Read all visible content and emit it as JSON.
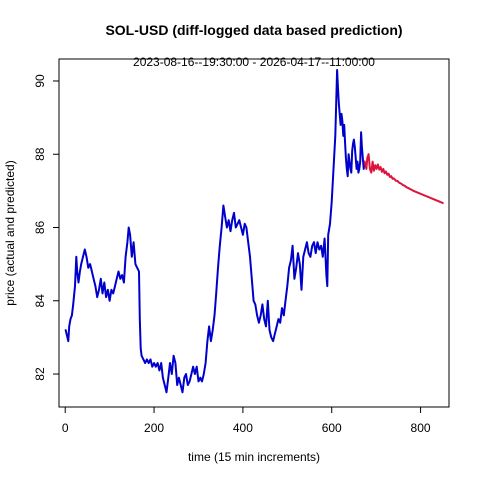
{
  "chart_data": {
    "type": "line",
    "title": "SOL-USD (diff-logged data based prediction)",
    "subtitle": "2023-08-16--19:30:00  -  2026-04-17--11:00:00",
    "xlabel": "time (15 min increments)",
    "ylabel": "price (actual and predicted)",
    "xlim": [
      -14,
      864
    ],
    "ylim": [
      81.1,
      90.6
    ],
    "xticks": [
      0,
      200,
      400,
      600,
      800
    ],
    "yticks": [
      82,
      84,
      86,
      88,
      90
    ],
    "grid": false,
    "series": [
      {
        "color": "#0000CD",
        "points": [
          [
            1,
            83.2
          ],
          [
            5,
            83.0
          ],
          [
            7,
            82.9
          ],
          [
            9,
            83.3
          ],
          [
            12,
            83.5
          ],
          [
            15,
            83.6
          ],
          [
            18,
            83.9
          ],
          [
            22,
            84.4
          ],
          [
            25,
            85.2
          ],
          [
            27,
            84.8
          ],
          [
            30,
            84.5
          ],
          [
            33,
            84.8
          ],
          [
            36,
            85.0
          ],
          [
            40,
            85.2
          ],
          [
            44,
            85.4
          ],
          [
            48,
            85.2
          ],
          [
            52,
            84.9
          ],
          [
            56,
            85.0
          ],
          [
            60,
            84.8
          ],
          [
            64,
            84.6
          ],
          [
            68,
            84.4
          ],
          [
            72,
            84.1
          ],
          [
            76,
            84.3
          ],
          [
            80,
            84.6
          ],
          [
            84,
            84.2
          ],
          [
            88,
            84.5
          ],
          [
            92,
            84.1
          ],
          [
            96,
            84.3
          ],
          [
            100,
            84.0
          ],
          [
            104,
            84.3
          ],
          [
            108,
            84.2
          ],
          [
            112,
            84.4
          ],
          [
            116,
            84.6
          ],
          [
            120,
            84.8
          ],
          [
            124,
            84.6
          ],
          [
            128,
            84.7
          ],
          [
            132,
            84.5
          ],
          [
            136,
            85.2
          ],
          [
            140,
            85.6
          ],
          [
            143,
            86.0
          ],
          [
            146,
            85.8
          ],
          [
            150,
            85.2
          ],
          [
            154,
            85.6
          ],
          [
            158,
            85.0
          ],
          [
            162,
            84.9
          ],
          [
            166,
            84.8
          ],
          [
            168,
            83.5
          ],
          [
            170,
            82.7
          ],
          [
            172,
            82.5
          ],
          [
            176,
            82.4
          ],
          [
            180,
            82.3
          ],
          [
            184,
            82.4
          ],
          [
            188,
            82.3
          ],
          [
            192,
            82.4
          ],
          [
            196,
            82.2
          ],
          [
            200,
            82.3
          ],
          [
            204,
            82.2
          ],
          [
            208,
            82.3
          ],
          [
            212,
            82.1
          ],
          [
            216,
            82.3
          ],
          [
            220,
            81.9
          ],
          [
            224,
            81.7
          ],
          [
            228,
            81.5
          ],
          [
            232,
            81.9
          ],
          [
            236,
            82.3
          ],
          [
            240,
            82.0
          ],
          [
            244,
            82.5
          ],
          [
            248,
            82.3
          ],
          [
            252,
            81.7
          ],
          [
            256,
            81.9
          ],
          [
            260,
            81.7
          ],
          [
            264,
            81.5
          ],
          [
            268,
            81.9
          ],
          [
            272,
            82.0
          ],
          [
            276,
            81.7
          ],
          [
            280,
            81.8
          ],
          [
            284,
            82.0
          ],
          [
            288,
            82.2
          ],
          [
            292,
            82.0
          ],
          [
            296,
            82.2
          ],
          [
            300,
            81.8
          ],
          [
            304,
            81.9
          ],
          [
            308,
            81.8
          ],
          [
            312,
            82.0
          ],
          [
            316,
            82.3
          ],
          [
            320,
            82.9
          ],
          [
            324,
            83.3
          ],
          [
            328,
            82.9
          ],
          [
            332,
            83.2
          ],
          [
            336,
            83.6
          ],
          [
            340,
            84.2
          ],
          [
            344,
            84.9
          ],
          [
            348,
            85.5
          ],
          [
            352,
            86.0
          ],
          [
            356,
            86.6
          ],
          [
            360,
            86.3
          ],
          [
            364,
            86.0
          ],
          [
            368,
            86.2
          ],
          [
            372,
            85.9
          ],
          [
            376,
            86.2
          ],
          [
            380,
            86.4
          ],
          [
            384,
            86.0
          ],
          [
            388,
            86.1
          ],
          [
            392,
            86.2
          ],
          [
            396,
            86.0
          ],
          [
            400,
            85.8
          ],
          [
            404,
            86.1
          ],
          [
            408,
            86.0
          ],
          [
            412,
            85.6
          ],
          [
            416,
            85.2
          ],
          [
            420,
            84.6
          ],
          [
            424,
            84.0
          ],
          [
            428,
            83.9
          ],
          [
            432,
            83.6
          ],
          [
            436,
            83.4
          ],
          [
            440,
            83.6
          ],
          [
            444,
            83.9
          ],
          [
            448,
            83.5
          ],
          [
            452,
            83.3
          ],
          [
            456,
            84.0
          ],
          [
            460,
            83.2
          ],
          [
            464,
            83.0
          ],
          [
            468,
            82.9
          ],
          [
            472,
            83.1
          ],
          [
            476,
            83.3
          ],
          [
            480,
            83.5
          ],
          [
            484,
            83.4
          ],
          [
            488,
            83.8
          ],
          [
            492,
            83.6
          ],
          [
            496,
            84.0
          ],
          [
            500,
            84.4
          ],
          [
            504,
            84.9
          ],
          [
            508,
            85.1
          ],
          [
            512,
            85.5
          ],
          [
            516,
            84.6
          ],
          [
            520,
            84.9
          ],
          [
            524,
            85.3
          ],
          [
            528,
            85.0
          ],
          [
            532,
            84.3
          ],
          [
            536,
            85.2
          ],
          [
            540,
            85.4
          ],
          [
            544,
            85.6
          ],
          [
            548,
            85.3
          ],
          [
            552,
            85.2
          ],
          [
            556,
            85.5
          ],
          [
            560,
            85.6
          ],
          [
            564,
            85.3
          ],
          [
            568,
            85.6
          ],
          [
            572,
            85.4
          ],
          [
            576,
            85.5
          ],
          [
            580,
            85.2
          ],
          [
            584,
            85.7
          ],
          [
            588,
            84.7
          ],
          [
            590,
            84.4
          ],
          [
            592,
            85.8
          ],
          [
            596,
            86.1
          ],
          [
            600,
            86.7
          ],
          [
            604,
            87.6
          ],
          [
            608,
            88.5
          ],
          [
            612,
            90.3
          ],
          [
            614,
            89.8
          ],
          [
            616,
            89.4
          ],
          [
            618,
            89.1
          ],
          [
            620,
            88.8
          ],
          [
            622,
            89.1
          ],
          [
            624,
            88.9
          ],
          [
            626,
            88.5
          ],
          [
            628,
            88.8
          ],
          [
            630,
            88.3
          ],
          [
            632,
            87.9
          ],
          [
            634,
            87.6
          ],
          [
            636,
            87.4
          ],
          [
            638,
            88.0
          ],
          [
            640,
            87.8
          ],
          [
            642,
            87.6
          ],
          [
            644,
            87.5
          ],
          [
            646,
            88.1
          ],
          [
            648,
            88.3
          ],
          [
            650,
            88.4
          ],
          [
            652,
            88.2
          ],
          [
            654,
            87.9
          ],
          [
            656,
            87.6
          ],
          [
            658,
            87.8
          ],
          [
            660,
            87.5
          ],
          [
            662,
            87.6
          ],
          [
            664,
            87.8
          ],
          [
            666,
            88.6
          ],
          [
            668,
            88.2
          ],
          [
            670,
            87.9
          ],
          [
            672,
            87.6
          ],
          [
            674,
            87.8
          ]
        ]
      },
      {
        "color": "#DC143C",
        "points": [
          [
            674,
            87.8
          ],
          [
            678,
            87.6
          ],
          [
            680,
            87.9
          ],
          [
            683,
            88.0
          ],
          [
            686,
            87.6
          ],
          [
            689,
            87.5
          ],
          [
            692,
            87.8
          ],
          [
            695,
            87.55
          ],
          [
            698,
            87.7
          ],
          [
            701,
            87.6
          ],
          [
            704,
            87.72
          ],
          [
            707,
            87.58
          ],
          [
            710,
            87.65
          ],
          [
            713,
            87.52
          ],
          [
            716,
            87.6
          ],
          [
            719,
            87.48
          ],
          [
            722,
            87.53
          ],
          [
            725,
            87.44
          ],
          [
            728,
            87.47
          ],
          [
            731,
            87.38
          ],
          [
            734,
            87.4
          ],
          [
            737,
            87.33
          ],
          [
            740,
            87.34
          ],
          [
            744,
            87.28
          ],
          [
            748,
            87.27
          ],
          [
            752,
            87.22
          ],
          [
            756,
            87.2
          ],
          [
            760,
            87.16
          ],
          [
            764,
            87.14
          ],
          [
            768,
            87.1
          ],
          [
            772,
            87.08
          ],
          [
            776,
            87.05
          ],
          [
            780,
            87.03
          ],
          [
            784,
            87.0
          ],
          [
            788,
            86.98
          ],
          [
            792,
            86.96
          ],
          [
            796,
            86.94
          ],
          [
            800,
            86.92
          ],
          [
            804,
            86.9
          ],
          [
            808,
            86.88
          ],
          [
            812,
            86.86
          ],
          [
            816,
            86.84
          ],
          [
            820,
            86.82
          ],
          [
            824,
            86.8
          ],
          [
            828,
            86.78
          ],
          [
            832,
            86.76
          ],
          [
            836,
            86.74
          ],
          [
            840,
            86.72
          ],
          [
            844,
            86.7
          ],
          [
            848,
            86.68
          ],
          [
            850,
            86.67
          ]
        ]
      }
    ]
  }
}
